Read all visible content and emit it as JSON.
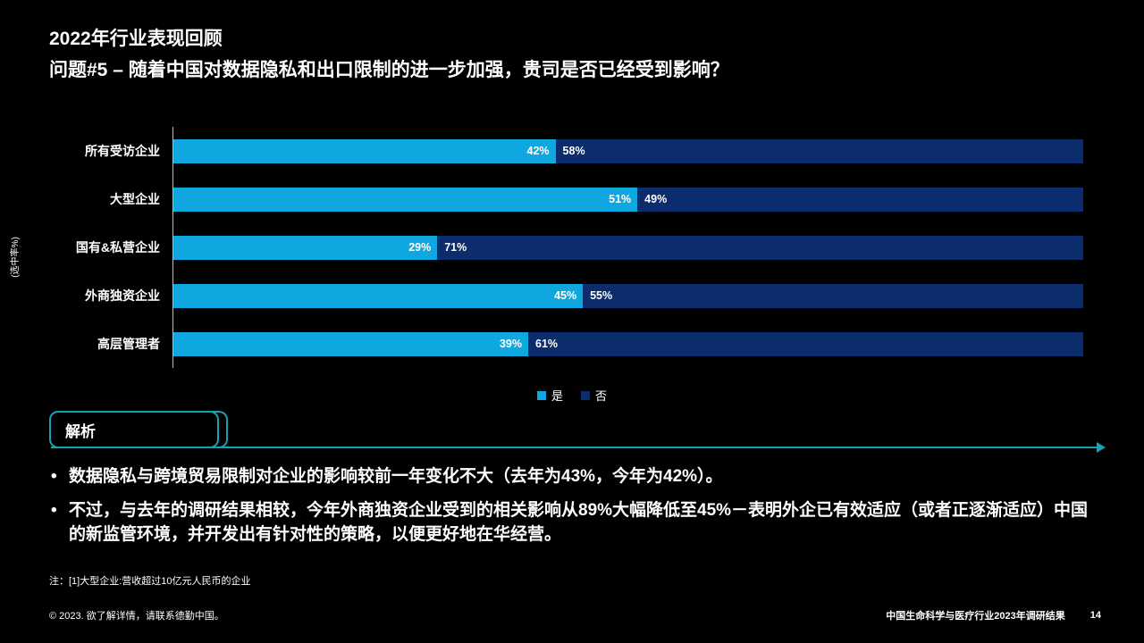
{
  "theme": {
    "accent": "#18a0b4",
    "background": "#000000"
  },
  "slide": {
    "title": "2022年行业表现回顾",
    "subtitle": "问题#5 – 随着中国对数据隐私和出口限制的进一步加强，贵司是否已经受到影响？",
    "axis_label": "(选中率%)",
    "footnote": "注：[1]大型企业:营收超过10亿元人民币的企业",
    "footer_left": "© 2023. 欲了解详情，请联系德勤中国。",
    "footer_right": "中国生命科学与医疗行业2023年调研结果",
    "page_number": "14"
  },
  "chart_data": {
    "type": "bar",
    "orientation": "horizontal",
    "stacked": true,
    "title": "",
    "xlabel": "",
    "ylabel": "(选中率%)",
    "xlim": [
      0,
      100
    ],
    "value_suffix": "%",
    "legend_position": "bottom",
    "categories": [
      "所有受访企业",
      "大型企业",
      "国有&私营企业",
      "外商独资企业",
      "高层管理者"
    ],
    "series": [
      {
        "name": "是",
        "color": "#0fa7e0",
        "values": [
          42,
          51,
          29,
          45,
          39
        ]
      },
      {
        "name": "否",
        "color": "#0b2d6e",
        "values": [
          58,
          49,
          71,
          55,
          61
        ]
      }
    ]
  },
  "analysis": {
    "label": "解析",
    "bullets": [
      "数据隐私与跨境贸易限制对企业的影响较前一年变化不大（去年为43%，今年为42%）。",
      "不过，与去年的调研结果相较，今年外商独资企业受到的相关影响从89%大幅降低至45%－表明外企已有效适应（或者正逐渐适应）中国的新监管环境，并开发出有针对性的策略，以便更好地在华经营。"
    ]
  }
}
